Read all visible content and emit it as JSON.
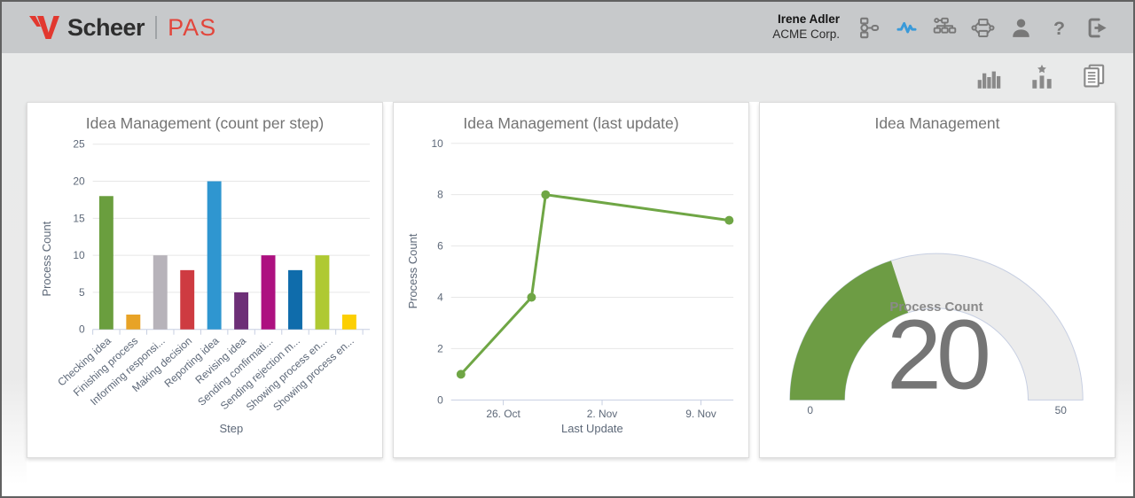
{
  "header": {
    "brand": {
      "name": "Scheer",
      "separator": "|",
      "product": "PAS",
      "brand_color": "#e2382f"
    },
    "user": {
      "name": "Irene Adler",
      "company": "ACME Corp."
    },
    "icon_color": "#787878",
    "active_color": "#3a9ad9",
    "nav_icons": [
      {
        "name": "workflow-icon",
        "active": false
      },
      {
        "name": "monitoring-pulse-icon",
        "active": true
      },
      {
        "name": "sitemap-icon",
        "active": false
      },
      {
        "name": "process-collaboration-icon",
        "active": false
      },
      {
        "name": "user-icon",
        "active": false
      },
      {
        "name": "help-icon",
        "active": false
      },
      {
        "name": "logout-icon",
        "active": false
      }
    ]
  },
  "toolbar": {
    "icon_color": "#8a8a8a",
    "icons": [
      {
        "name": "column-chart-icon"
      },
      {
        "name": "favorite-chart-icon"
      },
      {
        "name": "report-icon"
      }
    ]
  },
  "chart_data": [
    {
      "type": "bar",
      "title": "Idea Management (count per step)",
      "xlabel": "Step",
      "ylabel": "Process Count",
      "categories": [
        "Checking idea",
        "Finishing process",
        "Informing responsi...",
        "Making decision",
        "Reporting idea",
        "Revising idea",
        "Sending confirmati...",
        "Sending rejection m...",
        "Showing process en...",
        "Showing process en..."
      ],
      "values": [
        18,
        2,
        10,
        8,
        20,
        5,
        10,
        8,
        10,
        2
      ],
      "colors": [
        "#6a9e3e",
        "#e8a326",
        "#b7b3ba",
        "#ce3b41",
        "#2f96d0",
        "#6d2f77",
        "#ad1080",
        "#0f6cab",
        "#afc932",
        "#fccf03"
      ],
      "ylim": [
        0,
        25
      ],
      "yticks": [
        0,
        5,
        10,
        15,
        20,
        25
      ],
      "grid": true,
      "legend": "none"
    },
    {
      "type": "line",
      "title": "Idea Management (last update)",
      "xlabel": "Last Update",
      "ylabel": "Process Count",
      "points": [
        {
          "date": "23. Oct",
          "day": 0,
          "y": 1
        },
        {
          "date": "28. Oct",
          "day": 5,
          "y": 4
        },
        {
          "date": "29. Oct",
          "day": 6,
          "y": 8
        },
        {
          "date": "11. Nov",
          "day": 19,
          "y": 7
        }
      ],
      "xticks": [
        {
          "label": "26. Oct",
          "day": 3
        },
        {
          "label": "2. Nov",
          "day": 10
        },
        {
          "label": "9. Nov",
          "day": 17
        }
      ],
      "xdomain": [
        -0.7,
        19.3
      ],
      "ylim": [
        0,
        10
      ],
      "yticks": [
        0,
        2,
        4,
        6,
        8,
        10
      ],
      "color": "#6fa645",
      "grid": true,
      "legend": "none"
    },
    {
      "type": "gauge",
      "title": "Idea Management",
      "label": "Process Count",
      "value": 20,
      "min": 0,
      "max": 50,
      "color": "#6d9c44",
      "track_color": "#ececec",
      "outline_color": "#c7cfe2"
    }
  ]
}
